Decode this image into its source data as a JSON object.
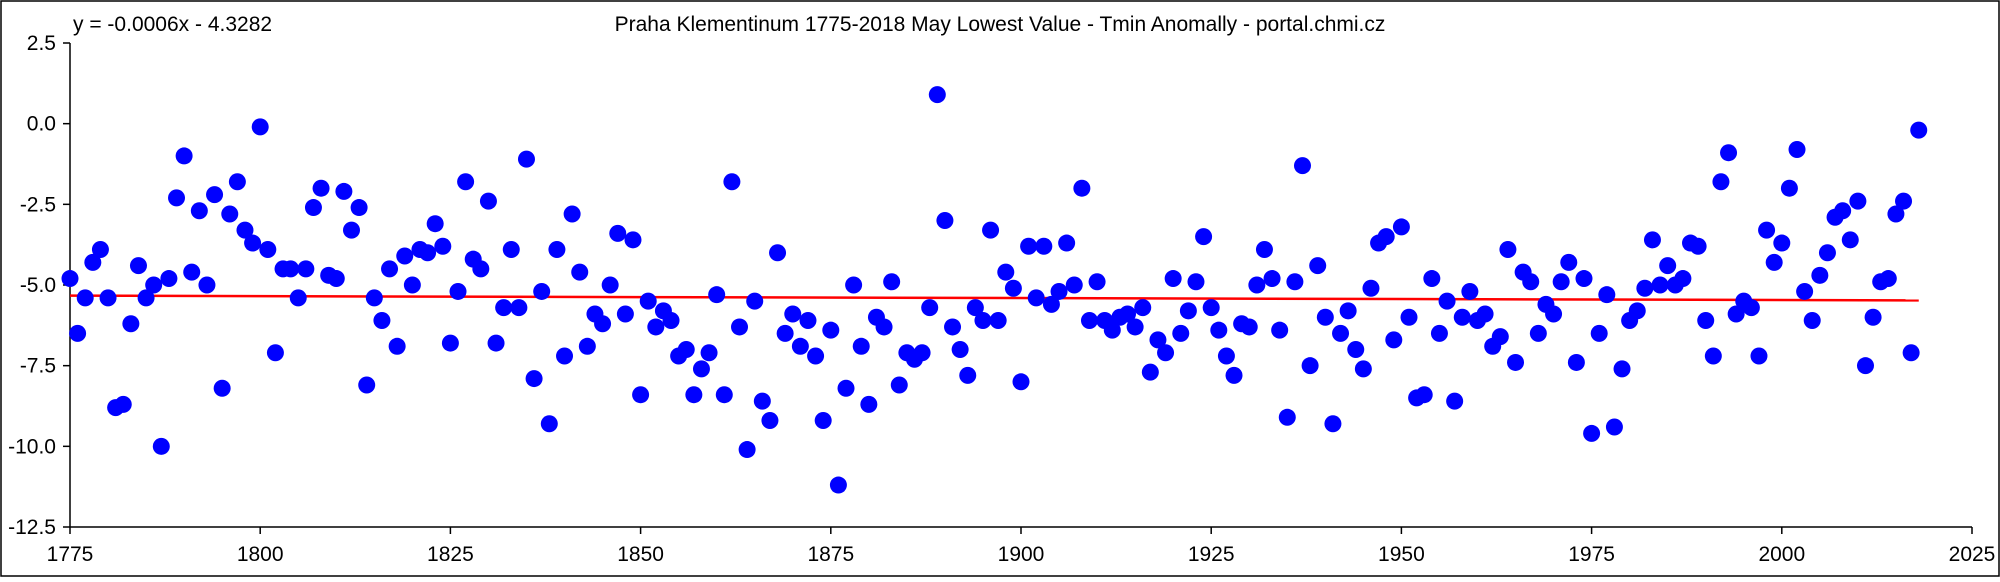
{
  "chart_data": {
    "type": "scatter",
    "title": "Praha Klementinum 1775-2018 May Lowest Value - Tmin Anomally - portal.chmi.cz",
    "equation": "y = -0.0006x - 4.3282",
    "xlabel": "",
    "ylabel": "",
    "xlim": [
      1775,
      2025
    ],
    "ylim": [
      -12.5,
      2.5
    ],
    "x_ticks": [
      1775,
      1800,
      1825,
      1850,
      1875,
      1900,
      1925,
      1950,
      1975,
      2000,
      2025
    ],
    "y_ticks": [
      2.5,
      0.0,
      -2.5,
      -5.0,
      -7.5,
      -10.0,
      -12.5
    ],
    "y_tick_labels": [
      "2.5",
      "0.0",
      "-2.5",
      "-5.0",
      "-7.5",
      "-10.0",
      "-12.5"
    ],
    "grid": false,
    "legend": "none",
    "point_color": "#0000ff",
    "trend_color": "#ff0000",
    "trendline": {
      "slope": -0.0006,
      "intercept": -4.3282,
      "x_start": 1775,
      "x_end": 2018
    },
    "series": [
      {
        "x": [
          1775,
          1776,
          1777,
          1778,
          1779,
          1780,
          1781,
          1782,
          1783,
          1784,
          1785,
          1786,
          1787,
          1788,
          1789,
          1790,
          1791,
          1792,
          1793,
          1794,
          1795,
          1796,
          1797,
          1798,
          1799,
          1800,
          1801,
          1802,
          1803,
          1804,
          1805,
          1806,
          1807,
          1808,
          1809,
          1810,
          1811,
          1812,
          1813,
          1814,
          1815,
          1816,
          1817,
          1818,
          1819,
          1820,
          1821,
          1822,
          1823,
          1824,
          1825,
          1826,
          1827,
          1828,
          1829,
          1830,
          1831,
          1832,
          1833,
          1834,
          1835,
          1836,
          1837,
          1838,
          1839,
          1840,
          1841,
          1842,
          1843,
          1844,
          1845,
          1846,
          1847,
          1848,
          1849,
          1850,
          1851,
          1852,
          1853,
          1854,
          1855,
          1856,
          1857,
          1858,
          1859,
          1860,
          1861,
          1862,
          1863,
          1864,
          1865,
          1866,
          1867,
          1868,
          1869,
          1870,
          1871,
          1872,
          1873,
          1874,
          1875,
          1876,
          1877,
          1878,
          1879,
          1880,
          1881,
          1882,
          1883,
          1884,
          1885,
          1886,
          1887,
          1888,
          1889,
          1890,
          1891,
          1892,
          1893,
          1894,
          1895,
          1896,
          1897,
          1898,
          1899,
          1900,
          1901,
          1902,
          1903,
          1904,
          1905,
          1906,
          1907,
          1908,
          1909,
          1910,
          1911,
          1912,
          1913,
          1914,
          1915,
          1916,
          1917,
          1918,
          1919,
          1920,
          1921,
          1922,
          1923,
          1924,
          1925,
          1926,
          1927,
          1928,
          1929,
          1930,
          1931,
          1932,
          1933,
          1934,
          1935,
          1936,
          1937,
          1938,
          1939,
          1940,
          1941,
          1942,
          1943,
          1944,
          1945,
          1946,
          1947,
          1948,
          1949,
          1950,
          1951,
          1952,
          1953,
          1954,
          1955,
          1956,
          1957,
          1958,
          1959,
          1960,
          1961,
          1962,
          1963,
          1964,
          1965,
          1966,
          1967,
          1968,
          1969,
          1970,
          1971,
          1972,
          1973,
          1974,
          1975,
          1976,
          1977,
          1978,
          1979,
          1980,
          1981,
          1982,
          1983,
          1984,
          1985,
          1986,
          1987,
          1988,
          1989,
          1990,
          1991,
          1992,
          1993,
          1994,
          1995,
          1996,
          1997,
          1998,
          1999,
          2000,
          2001,
          2002,
          2003,
          2004,
          2005,
          2006,
          2007,
          2008,
          2009,
          2010,
          2011,
          2012,
          2013,
          2014,
          2015,
          2016,
          2017,
          2018
        ],
        "y": [
          -4.8,
          -6.5,
          -5.4,
          -4.3,
          -3.9,
          -5.4,
          -8.8,
          -8.7,
          -6.2,
          -4.4,
          -5.4,
          -5.0,
          -10.0,
          -4.8,
          -2.3,
          -1.0,
          -4.6,
          -2.7,
          -5.0,
          -2.2,
          -8.2,
          -2.8,
          -1.8,
          -3.3,
          -3.7,
          -0.1,
          -3.9,
          -7.1,
          -4.5,
          -4.5,
          -5.4,
          -4.5,
          -2.6,
          -2.0,
          -4.7,
          -4.8,
          -2.1,
          -3.3,
          -2.6,
          -8.1,
          -5.4,
          -6.1,
          -4.5,
          -6.9,
          -4.1,
          -5.0,
          -3.9,
          -4.0,
          -3.1,
          -3.8,
          -6.8,
          -5.2,
          -1.8,
          -4.2,
          -4.5,
          -2.4,
          -6.8,
          -5.7,
          -3.9,
          -5.7,
          -1.1,
          -7.9,
          -5.2,
          -9.3,
          -3.9,
          -7.2,
          -2.8,
          -4.6,
          -6.9,
          -5.9,
          -6.2,
          -5.0,
          -3.4,
          -5.9,
          -3.6,
          -8.4,
          -5.5,
          -6.3,
          -5.8,
          -6.1,
          -7.2,
          -7.0,
          -8.4,
          -7.6,
          -7.1,
          -5.3,
          -8.4,
          -1.8,
          -6.3,
          -10.1,
          -5.5,
          -8.6,
          -9.2,
          -4.0,
          -6.5,
          -5.9,
          -6.9,
          -6.1,
          -7.2,
          -9.2,
          -6.4,
          -11.2,
          -8.2,
          -5.0,
          -6.9,
          -8.7,
          -6.0,
          -6.3,
          -4.9,
          -8.1,
          -7.1,
          -7.3,
          -7.1,
          -5.7,
          0.9,
          -3.0,
          -6.3,
          -7.0,
          -7.8,
          -5.7,
          -6.1,
          -3.3,
          -6.1,
          -4.6,
          -5.1,
          -8.0,
          -3.8,
          -5.4,
          -3.8,
          -5.6,
          -5.2,
          -3.7,
          -5.0,
          -2.0,
          -6.1,
          -4.9,
          -6.1,
          -6.4,
          -6.0,
          -5.9,
          -6.3,
          -5.7,
          -7.7,
          -6.7,
          -7.1,
          -4.8,
          -6.5,
          -5.8,
          -4.9,
          -3.5,
          -5.7,
          -6.4,
          -7.2,
          -7.8,
          -6.2,
          -6.3,
          -5.0,
          -3.9,
          -4.8,
          -6.4,
          -9.1,
          -4.9,
          -1.3,
          -7.5,
          -4.4,
          -6.0,
          -9.3,
          -6.5,
          -5.8,
          -7.0,
          -7.6,
          -5.1,
          -3.7,
          -3.5,
          -6.7,
          -3.2,
          -6.0,
          -8.5,
          -8.4,
          -4.8,
          -6.5,
          -5.5,
          -8.6,
          -6.0,
          -5.2,
          -6.1,
          -5.9,
          -6.9,
          -6.6,
          -3.9,
          -7.4,
          -4.6,
          -4.9,
          -6.5,
          -5.6,
          -5.9,
          -4.9,
          -4.3,
          -7.4,
          -4.8,
          -9.6,
          -6.5,
          -5.3,
          -9.4,
          -7.6,
          -6.1,
          -5.8,
          -5.1,
          -3.6,
          -5.0,
          -4.4,
          -5.0,
          -4.8,
          -3.7,
          -3.8,
          -6.1,
          -7.2,
          -1.8,
          -0.9,
          -5.9,
          -5.5,
          -5.7,
          -7.2,
          -3.3,
          -4.3,
          -3.7,
          -2.0,
          -0.8,
          -5.2,
          -6.1,
          -4.7,
          -4.0,
          -2.9,
          -2.7,
          -3.6,
          -2.4,
          -7.5,
          -6.0,
          -4.9,
          -4.8,
          -2.8,
          -2.4,
          -7.1,
          -0.2
        ]
      }
    ]
  }
}
